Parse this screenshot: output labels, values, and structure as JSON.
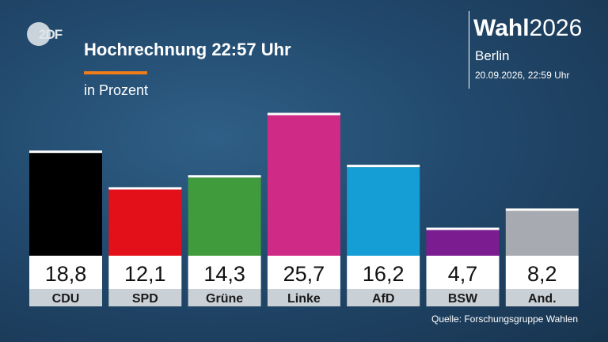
{
  "logo": {
    "text": "2DF"
  },
  "header": {
    "title": "Hochrechnung 22:57 Uhr",
    "subtitle": "in Prozent"
  },
  "brand": {
    "name_strong": "Wahl",
    "name_year": "2026",
    "region": "Berlin",
    "timestamp": "20.09.2026, 22:59 Uhr"
  },
  "colors": {
    "accent": "#f07c1a",
    "value_box": "#ffffff",
    "label_box": "#c9d0d6"
  },
  "chart_data": {
    "type": "bar",
    "categories": [
      "CDU",
      "SPD",
      "Grüne",
      "Linke",
      "AfD",
      "BSW",
      "And."
    ],
    "values": [
      18.8,
      12.1,
      14.3,
      25.7,
      16.2,
      4.7,
      8.2
    ],
    "value_labels": [
      "18,8",
      "12,1",
      "14,3",
      "25,7",
      "16,2",
      "4,7",
      "8,2"
    ],
    "colors": [
      "#000000",
      "#e3101a",
      "#3f9b3c",
      "#d02a87",
      "#159dd5",
      "#7b1d91",
      "#a7aab0"
    ],
    "title": "Hochrechnung 22:57 Uhr",
    "ylabel": "in Prozent",
    "ylim": [
      0,
      26.5
    ],
    "grid": false,
    "legend": "none"
  },
  "footer": {
    "source": "Quelle: Forschungsgruppe Wahlen"
  }
}
